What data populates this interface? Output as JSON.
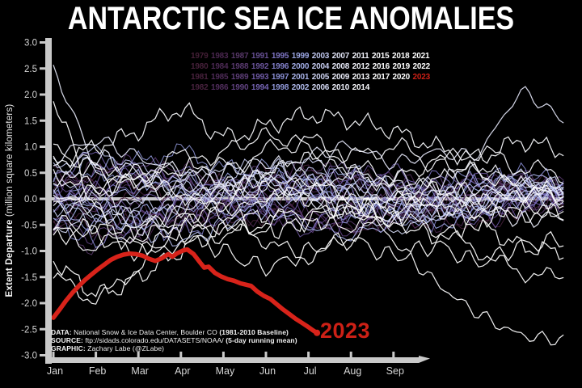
{
  "title": "ANTARCTIC SEA ICE ANOMALIES",
  "annotation": {
    "text": "2023",
    "color": "#cc2016"
  },
  "y_axis": {
    "label_bold": "Extent Departure",
    "label_rest": " (million square kilometers)",
    "tick_labels": [
      "3.0",
      "2.5",
      "2.0",
      "1.5",
      "1.0",
      "0.5",
      "0.0",
      "-0.5",
      "-1.0",
      "-1.5",
      "-2.0",
      "-2.5",
      "-3.0"
    ],
    "tick_values": [
      3.0,
      2.5,
      2.0,
      1.5,
      1.0,
      0.5,
      0.0,
      -0.5,
      -1.0,
      -1.5,
      -2.0,
      -2.5,
      -3.0
    ]
  },
  "x_axis": {
    "month_labels": [
      "Jan",
      "Feb",
      "Mar",
      "Apr",
      "May",
      "Jun",
      "Jul",
      "Aug",
      "Sep"
    ]
  },
  "credits": {
    "lines": [
      {
        "label": "DATA:",
        "text": " National Snow & Ice Data Center, Boulder CO ",
        "bold": "(1981-2010 Baseline)"
      },
      {
        "label": "SOURCE:",
        "text": " ftp://sidads.colorado.edu/DATASETS/NOAA/ ",
        "bold": "(5-day running mean)"
      },
      {
        "label": "GRAPHIC:",
        "text": " Zachary Labe (@ZLabe)",
        "bold": ""
      }
    ]
  },
  "legend": {
    "rows": [
      [
        "1979",
        "1983",
        "1987",
        "1991",
        "1995",
        "1999",
        "2003",
        "2007",
        "2011",
        "2015",
        "2018",
        "2021"
      ],
      [
        "1980",
        "1984",
        "1988",
        "1992",
        "1996",
        "2000",
        "2004",
        "2008",
        "2012",
        "2016",
        "2019",
        "2022"
      ],
      [
        "1981",
        "1985",
        "1989",
        "1993",
        "1997",
        "2001",
        "2005",
        "2009",
        "2013",
        "2017",
        "2020",
        "2023"
      ],
      [
        "1982",
        "1986",
        "1990",
        "1994",
        "1998",
        "2002",
        "2006",
        "2010",
        "2014"
      ]
    ]
  },
  "chart_data": {
    "type": "line",
    "title": "ANTARCTIC SEA ICE ANOMALIES",
    "ylabel": "Extent Departure (million square kilometers)",
    "ylim": [
      -3.0,
      3.0
    ],
    "xtick_months": [
      "Jan",
      "Feb",
      "Mar",
      "Apr",
      "May",
      "Jun",
      "Jul",
      "Aug",
      "Sep"
    ],
    "baseline_text": "1981-2010 Baseline",
    "zero_line": 0.0,
    "axis_color": "#c9c9c9",
    "zero_line_color": "#c9c9cc",
    "year_colors": {
      "1979": "#451f37",
      "1980": "#46203a",
      "1981": "#47213c",
      "1982": "#48223e",
      "1983": "#4b2750",
      "1984": "#4c2954",
      "1985": "#4e2b58",
      "1986": "#502d5c",
      "1987": "#573768",
      "1988": "#5a3a70",
      "1989": "#5d3e78",
      "1990": "#604280",
      "1991": "#675094",
      "1992": "#6b559c",
      "1993": "#6f5aa6",
      "1994": "#7463b2",
      "1995": "#7d74c2",
      "1996": "#8280ca",
      "1997": "#888dd2",
      "1998": "#8f97d8",
      "1999": "#99a4e0",
      "2000": "#a0abe4",
      "2001": "#a8b2e8",
      "2002": "#b0baec",
      "2003": "#bfc6ee",
      "2004": "#c6ccf0",
      "2005": "#cdd3f2",
      "2006": "#d4d9f4",
      "2007": "#dfe2f4",
      "2008": "#e4e7f6",
      "2009": "#e9ebf8",
      "2010": "#edeffa",
      "2011": "#f2f3fb",
      "2012": "#f5f6fc",
      "2013": "#f8f9fd",
      "2014": "#fafbfe",
      "2015": "#fcfcfe",
      "2016": "#fdfdfe",
      "2017": "#fefefe",
      "2018": "#ffffff",
      "2019": "#ffffff",
      "2020": "#ffffff",
      "2021": "#ffffff",
      "2022": "#ffffff",
      "2023": "#cc2016"
    },
    "series_2023": {
      "name": "2023",
      "color": "#d8231a",
      "points_month_value": [
        [
          0.0,
          -2.28
        ],
        [
          0.15,
          -2.12
        ],
        [
          0.3,
          -1.95
        ],
        [
          0.45,
          -1.8
        ],
        [
          0.6,
          -1.67
        ],
        [
          0.75,
          -1.55
        ],
        [
          0.9,
          -1.45
        ],
        [
          1.05,
          -1.35
        ],
        [
          1.2,
          -1.26
        ],
        [
          1.35,
          -1.17
        ],
        [
          1.5,
          -1.11
        ],
        [
          1.65,
          -1.07
        ],
        [
          1.8,
          -1.05
        ],
        [
          1.95,
          -1.06
        ],
        [
          2.1,
          -1.09
        ],
        [
          2.25,
          -1.15
        ],
        [
          2.4,
          -1.19
        ],
        [
          2.55,
          -1.14
        ],
        [
          2.7,
          -1.06
        ],
        [
          2.8,
          -1.11
        ],
        [
          2.9,
          -1.05
        ],
        [
          3.05,
          -0.99
        ],
        [
          3.15,
          -0.97
        ],
        [
          3.3,
          -1.06
        ],
        [
          3.45,
          -1.22
        ],
        [
          3.55,
          -1.32
        ],
        [
          3.65,
          -1.3
        ],
        [
          3.8,
          -1.42
        ],
        [
          3.95,
          -1.49
        ],
        [
          4.1,
          -1.54
        ],
        [
          4.25,
          -1.57
        ],
        [
          4.4,
          -1.62
        ],
        [
          4.55,
          -1.65
        ],
        [
          4.65,
          -1.67
        ],
        [
          4.8,
          -1.78
        ],
        [
          4.95,
          -1.86
        ],
        [
          5.1,
          -1.92
        ],
        [
          5.25,
          -2.02
        ],
        [
          5.4,
          -2.12
        ],
        [
          5.55,
          -2.21
        ],
        [
          5.7,
          -2.3
        ],
        [
          5.85,
          -2.38
        ],
        [
          6.0,
          -2.46
        ],
        [
          6.1,
          -2.52
        ],
        [
          6.2,
          -2.57
        ]
      ]
    },
    "background_series_estimated": true,
    "background_series": [
      {
        "year": 1979,
        "monthly": [
          0.2,
          0.5,
          0.3,
          -0.2,
          -0.5,
          -0.3,
          0.1,
          0.4,
          0.2,
          -0.1,
          -0.4,
          -0.2,
          0.0
        ]
      },
      {
        "year": 1980,
        "monthly": [
          -0.3,
          -0.6,
          -0.4,
          0.0,
          0.3,
          0.5,
          0.2,
          -0.2,
          -0.5,
          -0.3,
          0.1,
          0.3,
          0.2
        ]
      },
      {
        "year": 1981,
        "monthly": [
          0.5,
          0.2,
          -0.1,
          -0.4,
          -0.2,
          0.2,
          0.5,
          0.3,
          0.0,
          -0.3,
          -0.5,
          -0.2,
          0.0
        ]
      },
      {
        "year": 1982,
        "monthly": [
          -0.5,
          -0.2,
          0.1,
          0.4,
          0.2,
          -0.1,
          -0.4,
          -0.6,
          -0.3,
          0.0,
          0.3,
          0.1,
          -0.1
        ]
      },
      {
        "year": 1983,
        "monthly": [
          0.0,
          -0.4,
          -0.7,
          -0.5,
          -0.2,
          0.1,
          0.3,
          0.0,
          -0.3,
          -0.5,
          -0.2,
          0.1,
          0.2
        ]
      },
      {
        "year": 1984,
        "monthly": [
          0.3,
          0.6,
          0.4,
          0.1,
          -0.2,
          -0.4,
          -0.1,
          0.2,
          0.4,
          0.1,
          -0.2,
          0.0,
          0.1
        ]
      },
      {
        "year": 1985,
        "monthly": [
          -0.2,
          0.1,
          0.4,
          0.6,
          0.3,
          0.0,
          -0.3,
          -0.5,
          -0.2,
          0.1,
          0.4,
          0.2,
          0.0
        ]
      },
      {
        "year": 1986,
        "monthly": [
          0.1,
          -0.2,
          -0.5,
          -0.3,
          0.0,
          0.3,
          0.6,
          0.4,
          0.1,
          -0.2,
          0.0,
          0.3,
          0.2
        ]
      },
      {
        "year": 1987,
        "monthly": [
          -0.6,
          -0.9,
          -0.6,
          -0.3,
          0.0,
          0.2,
          -0.1,
          -0.4,
          -0.2,
          0.1,
          0.3,
          0.0,
          -0.2
        ]
      },
      {
        "year": 1988,
        "monthly": [
          0.4,
          0.1,
          -0.2,
          0.0,
          0.3,
          0.5,
          0.2,
          -0.1,
          -0.4,
          -0.2,
          0.1,
          0.4,
          0.3
        ]
      },
      {
        "year": 1989,
        "monthly": [
          0.2,
          0.5,
          0.7,
          0.4,
          0.1,
          -0.2,
          -0.5,
          -0.3,
          0.0,
          0.3,
          0.1,
          -0.1,
          0.0
        ]
      },
      {
        "year": 1990,
        "monthly": [
          -0.4,
          -0.7,
          -0.4,
          -0.1,
          0.2,
          0.0,
          -0.3,
          -0.6,
          -0.4,
          -0.1,
          0.2,
          0.4,
          0.2
        ]
      },
      {
        "year": 1991,
        "monthly": [
          0.3,
          0.0,
          -0.3,
          -0.5,
          -0.2,
          0.1,
          0.4,
          0.6,
          0.3,
          0.0,
          -0.3,
          -0.1,
          0.1
        ]
      },
      {
        "year": 1992,
        "monthly": [
          -0.1,
          0.2,
          0.5,
          0.3,
          0.0,
          -0.3,
          -0.6,
          -0.4,
          -0.1,
          0.2,
          0.4,
          0.1,
          -0.1
        ]
      },
      {
        "year": 1993,
        "monthly": [
          0.0,
          0.3,
          0.1,
          -0.2,
          -0.4,
          -0.1,
          0.2,
          0.4,
          0.1,
          -0.2,
          -0.4,
          -0.2,
          0.0
        ]
      },
      {
        "year": 1994,
        "monthly": [
          0.5,
          0.8,
          0.5,
          0.2,
          -0.1,
          -0.3,
          0.0,
          0.3,
          0.5,
          0.2,
          -0.1,
          0.1,
          0.2
        ]
      },
      {
        "year": 1995,
        "monthly": [
          -0.3,
          0.0,
          0.3,
          0.5,
          0.2,
          -0.1,
          -0.4,
          -0.2,
          0.1,
          0.4,
          0.2,
          -0.1,
          0.0
        ]
      },
      {
        "year": 1996,
        "monthly": [
          0.2,
          -0.1,
          -0.4,
          -0.6,
          -0.3,
          0.0,
          0.3,
          0.1,
          -0.2,
          -0.4,
          -0.1,
          0.2,
          0.1
        ]
      },
      {
        "year": 1997,
        "monthly": [
          -0.5,
          -0.8,
          -0.5,
          -0.2,
          0.1,
          0.4,
          0.2,
          -0.1,
          -0.3,
          0.0,
          0.3,
          0.5,
          0.3
        ]
      },
      {
        "year": 1998,
        "monthly": [
          0.1,
          0.4,
          0.7,
          0.9,
          0.6,
          0.3,
          0.0,
          -0.3,
          -0.1,
          0.2,
          0.4,
          0.2,
          0.0
        ]
      },
      {
        "year": 1999,
        "monthly": [
          -0.2,
          -0.5,
          -0.3,
          0.0,
          0.3,
          0.6,
          0.3,
          0.0,
          -0.3,
          -0.5,
          -0.2,
          0.1,
          0.2
        ]
      },
      {
        "year": 2000,
        "monthly": [
          0.4,
          0.7,
          0.4,
          0.1,
          -0.2,
          0.0,
          0.3,
          0.5,
          0.2,
          -0.1,
          -0.3,
          0.0,
          0.1
        ]
      },
      {
        "year": 2001,
        "monthly": [
          -0.4,
          -0.1,
          0.2,
          0.4,
          0.1,
          -0.2,
          -0.5,
          -0.7,
          -0.4,
          -0.1,
          0.2,
          0.4,
          0.3
        ]
      },
      {
        "year": 2002,
        "monthly": [
          0.0,
          -0.3,
          -0.6,
          -0.8,
          -0.5,
          -0.2,
          0.1,
          0.3,
          0.0,
          -0.3,
          -0.1,
          0.2,
          0.1
        ]
      },
      {
        "year": 2003,
        "monthly": [
          0.6,
          0.9,
          0.6,
          0.3,
          0.0,
          0.3,
          0.5,
          0.2,
          -0.1,
          -0.4,
          -0.2,
          0.1,
          0.2
        ]
      },
      {
        "year": 2004,
        "monthly": [
          -0.1,
          -0.4,
          -0.2,
          0.1,
          0.4,
          0.6,
          0.3,
          0.0,
          -0.3,
          -0.1,
          0.2,
          0.4,
          0.2
        ]
      },
      {
        "year": 2005,
        "monthly": [
          0.3,
          0.0,
          -0.3,
          -0.1,
          0.2,
          0.5,
          0.7,
          0.4,
          0.1,
          -0.2,
          0.0,
          0.2,
          0.1
        ]
      },
      {
        "year": 2006,
        "monthly": [
          -0.6,
          -0.3,
          0.0,
          0.3,
          0.6,
          0.3,
          0.0,
          -0.3,
          -0.6,
          -0.3,
          0.0,
          0.3,
          0.2
        ]
      },
      {
        "year": 2007,
        "monthly": [
          0.8,
          1.1,
          0.8,
          0.5,
          0.2,
          0.5,
          0.8,
          1.0,
          0.7,
          0.9,
          0.9,
          2.0,
          1.5
        ]
      },
      {
        "year": 2008,
        "monthly": [
          2.4,
          0.6,
          -0.5,
          -0.2,
          0.1,
          0.3,
          0.0,
          -0.2,
          0.1,
          0.3,
          0.5,
          0.3,
          0.2
        ]
      },
      {
        "year": 2009,
        "monthly": [
          0.5,
          0.8,
          0.5,
          0.2,
          0.5,
          0.7,
          0.4,
          0.1,
          0.4,
          0.2,
          -0.1,
          -0.4,
          -0.3
        ]
      },
      {
        "year": 2010,
        "monthly": [
          -0.2,
          0.1,
          0.4,
          0.6,
          0.3,
          0.0,
          0.2,
          0.5,
          0.3,
          0.0,
          -0.2,
          0.1,
          0.0
        ]
      },
      {
        "year": 2011,
        "monthly": [
          0.1,
          -0.2,
          -0.5,
          -0.2,
          0.1,
          0.4,
          0.2,
          -0.1,
          -0.3,
          0.0,
          0.2,
          0.0,
          -0.1
        ]
      },
      {
        "year": 2012,
        "monthly": [
          0.3,
          0.6,
          0.3,
          0.0,
          0.3,
          0.5,
          0.8,
          0.5,
          0.2,
          0.4,
          0.6,
          0.3,
          0.2
        ]
      },
      {
        "year": 2013,
        "monthly": [
          0.5,
          0.2,
          0.5,
          0.8,
          0.6,
          0.9,
          1.1,
          0.8,
          1.0,
          0.7,
          0.9,
          0.6,
          0.5
        ]
      },
      {
        "year": 2014,
        "monthly": [
          0.7,
          1.0,
          1.3,
          1.7,
          1.2,
          1.4,
          1.6,
          1.5,
          1.3,
          1.0,
          0.8,
          1.1,
          0.9
        ]
      },
      {
        "year": 2015,
        "monthly": [
          0.9,
          0.6,
          0.3,
          0.6,
          0.9,
          1.2,
          1.0,
          0.7,
          0.4,
          0.7,
          0.5,
          0.2,
          0.1
        ]
      },
      {
        "year": 2016,
        "monthly": [
          -0.1,
          0.2,
          0.4,
          0.1,
          -0.2,
          0.0,
          0.3,
          0.0,
          -0.8,
          -1.6,
          -2.2,
          -2.6,
          -2.7
        ]
      },
      {
        "year": 2017,
        "monthly": [
          -1.2,
          -1.8,
          -1.5,
          -1.0,
          -0.6,
          -0.3,
          -0.5,
          -0.2,
          0.0,
          -0.2,
          -0.5,
          -0.9,
          -1.0
        ]
      },
      {
        "year": 2018,
        "monthly": [
          -0.8,
          -0.5,
          -0.9,
          -0.6,
          -0.3,
          -0.6,
          -0.4,
          -0.1,
          -0.4,
          -0.7,
          -0.4,
          -0.2,
          -0.3
        ]
      },
      {
        "year": 2019,
        "monthly": [
          -0.4,
          -0.7,
          -1.0,
          -0.7,
          -1.0,
          -1.3,
          -1.0,
          -0.8,
          -1.1,
          -0.9,
          -1.2,
          -0.9,
          -0.8
        ]
      },
      {
        "year": 2020,
        "monthly": [
          -0.6,
          -0.9,
          -0.6,
          -0.4,
          -0.7,
          -0.5,
          -0.2,
          -0.5,
          -0.3,
          0.0,
          -0.2,
          0.1,
          0.0
        ]
      },
      {
        "year": 2021,
        "monthly": [
          1.9,
          -0.2,
          -0.7,
          -0.4,
          -0.1,
          0.2,
          0.0,
          -0.3,
          -0.1,
          0.2,
          0.0,
          -0.3,
          -0.2
        ]
      },
      {
        "year": 2022,
        "monthly": [
          -1.5,
          -1.9,
          -1.3,
          -0.8,
          -0.5,
          -0.8,
          -1.1,
          -0.7,
          -0.4,
          -0.6,
          -1.0,
          -1.4,
          -1.5
        ]
      }
    ]
  }
}
